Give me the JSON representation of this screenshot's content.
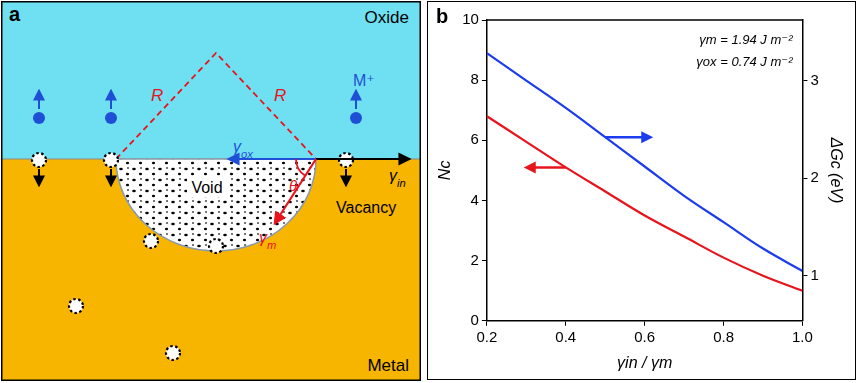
{
  "diagram": {
    "panel_label": "a",
    "oxide": "Oxide",
    "metal": "Metal",
    "radius_labels": [
      "R",
      "R"
    ],
    "ion": "M⁺",
    "gamma_ox": "γox",
    "gamma_in": "γin",
    "gamma_m": "γm",
    "angle": "θ",
    "void": "Void",
    "vacancy": "Vacancy"
  },
  "chart_data": {
    "type": "line",
    "panel_label": "b",
    "x_label": "γin / γm",
    "y_label": "Nc",
    "y2_label": "ΔGc (eV)",
    "annotations": [
      "γm = 1.94 J m⁻²",
      "γox = 0.74 J m⁻²"
    ],
    "x": [
      0.2,
      0.3,
      0.4,
      0.5,
      0.6,
      0.7,
      0.8,
      0.9,
      1.0
    ],
    "series": [
      {
        "name": "Nc",
        "color": "#e8141c",
        "values": [
          6.8,
          5.95,
          5.1,
          4.3,
          3.5,
          2.8,
          2.1,
          1.5,
          1.0
        ]
      },
      {
        "name": "ΔGc (eV)",
        "color": "#1c3cf0",
        "axis": "y2",
        "values": [
          3.28,
          3.0,
          2.72,
          2.42,
          2.12,
          1.82,
          1.55,
          1.28,
          1.05
        ]
      }
    ],
    "xlim": [
      0.2,
      1.0
    ],
    "xticks": [
      0.2,
      0.4,
      0.6,
      0.8,
      {
        "value": 1.0,
        "label": "1.0"
      }
    ],
    "ylim": [
      0,
      10
    ],
    "yticks": [
      0,
      2,
      4,
      6,
      8,
      10
    ],
    "y2lim": [
      0.54,
      3.62
    ],
    "y2ticks": [
      1,
      2,
      3
    ],
    "grid": false
  }
}
